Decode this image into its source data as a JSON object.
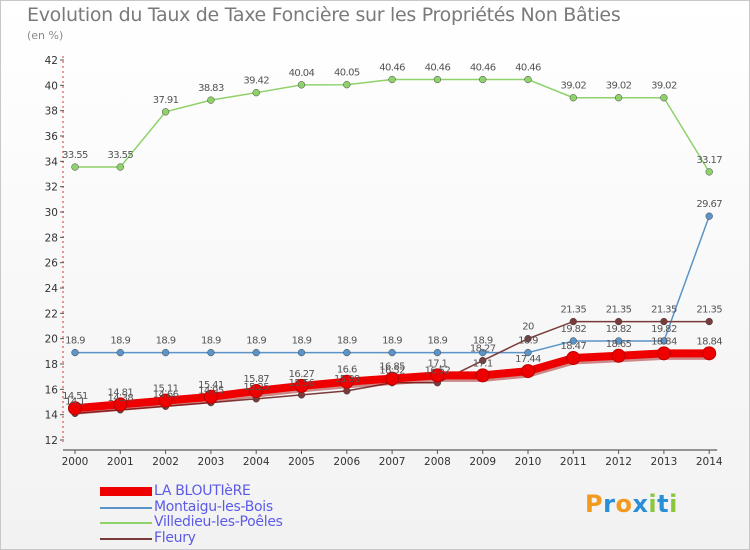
{
  "title": "Evolution du Taux de Taxe Foncière sur les Propriétés Non Bâties",
  "unit_label": "(en %)",
  "logo": {
    "text": "Proxiti",
    "letters": [
      {
        "ch": "P",
        "color": "#f29a1f"
      },
      {
        "ch": "r",
        "color": "#2a8fd6"
      },
      {
        "ch": "o",
        "color": "#f29a1f"
      },
      {
        "ch": "x",
        "color": "#2a8fd6"
      },
      {
        "ch": "i",
        "color": "#8cc63f"
      },
      {
        "ch": "t",
        "color": "#2a8fd6"
      },
      {
        "ch": "i",
        "color": "#8cc63f"
      }
    ]
  },
  "chart_data": {
    "type": "line",
    "title": "Evolution du Taux de Taxe Foncière sur les Propriétés Non Bâties",
    "ylabel": "(en %)",
    "xlabel": "",
    "categories": [
      "2000",
      "2001",
      "2002",
      "2003",
      "2004",
      "2005",
      "2006",
      "2007",
      "2008",
      "2009",
      "2010",
      "2011",
      "2012",
      "2013",
      "2014"
    ],
    "ylim": [
      12,
      42
    ],
    "yticks": [
      12,
      14,
      16,
      18,
      20,
      22,
      24,
      26,
      28,
      30,
      32,
      34,
      36,
      38,
      40,
      42
    ],
    "grid": false,
    "legend_position": "bottom-left",
    "series": [
      {
        "name": "LA BLOUTIèRE",
        "color": "#ee0000",
        "style": "thick",
        "values": [
          14.51,
          14.81,
          15.11,
          15.41,
          15.87,
          16.27,
          16.6,
          16.85,
          17.1,
          17.1,
          17.44,
          18.47,
          18.65,
          18.84,
          18.84
        ],
        "labels": [
          "14.51",
          "14.81",
          "15.11",
          "15.41",
          "15.87",
          "16.27",
          "16.6",
          "16.85",
          "17.1",
          "17.1",
          "17.44",
          "18.47",
          "18.65",
          "18.84",
          "18.84"
        ]
      },
      {
        "name": "Montaigu-les-Bois",
        "color": "#5b94c8",
        "style": "thin",
        "values": [
          18.9,
          18.9,
          18.9,
          18.9,
          18.9,
          18.9,
          18.9,
          18.9,
          18.9,
          18.9,
          18.9,
          19.82,
          19.82,
          19.82,
          29.67
        ],
        "labels": [
          "18.9",
          "18.9",
          "18.9",
          "18.9",
          "18.9",
          "18.9",
          "18.9",
          "18.9",
          "18.9",
          "18.9",
          "18.9",
          "19.82",
          "19.82",
          "19.82",
          "29.67"
        ]
      },
      {
        "name": "Villedieu-les-Poêles",
        "color": "#8fd16b",
        "style": "thin",
        "values": [
          33.55,
          33.55,
          37.91,
          38.83,
          39.42,
          40.04,
          40.05,
          40.46,
          40.46,
          40.46,
          40.46,
          39.02,
          39.02,
          39.02,
          33.17
        ],
        "labels": [
          "33.55",
          "33.55",
          "37.91",
          "38.83",
          "39.42",
          "40.04",
          "40.05",
          "40.46",
          "40.46",
          "40.46",
          "40.46",
          "39.02",
          "39.02",
          "39.02",
          "33.17"
        ]
      },
      {
        "name": "Fleury",
        "color": "#7a3a3a",
        "style": "thin",
        "values": [
          14.1,
          14.38,
          14.66,
          14.95,
          15.25,
          15.56,
          15.88,
          16.52,
          16.52,
          18.27,
          20,
          21.35,
          21.35,
          21.35,
          21.35
        ],
        "labels": [
          "14.1",
          "14.38",
          "14.66",
          "14.95",
          "15.25",
          "15.56",
          "15.88",
          "16.52",
          "16.52",
          "18.27",
          "20",
          "21.35",
          "21.35",
          "21.35",
          "21.35"
        ]
      }
    ]
  }
}
